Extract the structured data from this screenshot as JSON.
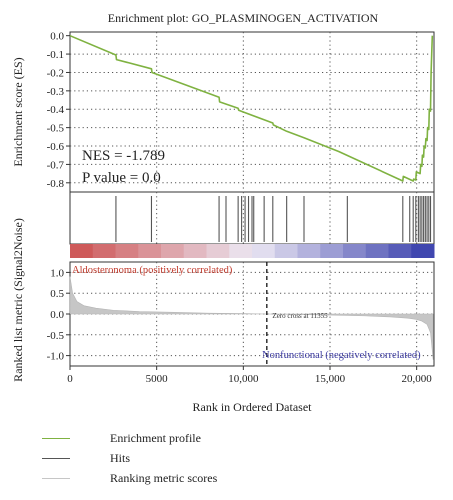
{
  "chart_data": {
    "type": "line",
    "title": "Enrichment plot: GO_PLASMINOGEN_ACTIVATION",
    "xlabel": "Rank in Ordered Dataset",
    "xlim": [
      0,
      21000
    ],
    "x_ticks": [
      0,
      5000,
      10000,
      15000,
      20000
    ],
    "x_tick_labels": [
      "0",
      "5000",
      "10,000",
      "15,000",
      "20,000"
    ],
    "grid": true,
    "enrichment": {
      "ylabel": "Enrichment score (ES)",
      "ylim": [
        -0.85,
        0.02
      ],
      "y_ticks": [
        0.0,
        -0.1,
        -0.2,
        -0.3,
        -0.4,
        -0.5,
        -0.6,
        -0.7,
        -0.8
      ],
      "y_tick_labels": [
        "0.0",
        "-0.1",
        "-0.2",
        "-0.3",
        "-0.4",
        "-0.5",
        "-0.6",
        "-0.7",
        "-0.8"
      ],
      "series": [
        {
          "name": "Enrichment profile",
          "color": "#7fb241",
          "x": [
            0,
            2650,
            2680,
            4700,
            4730,
            8600,
            8630,
            9700,
            9730,
            10000,
            11700,
            11730,
            12500,
            13500,
            15500,
            19200,
            19230,
            19800,
            19830,
            19950,
            19980,
            20200,
            20230,
            20300,
            20330,
            20400,
            20430,
            20500,
            20530,
            20600,
            20630,
            20700,
            20730,
            20800,
            20830,
            20900
          ],
          "y": [
            0.0,
            -0.105,
            -0.13,
            -0.18,
            -0.2,
            -0.335,
            -0.36,
            -0.395,
            -0.405,
            -0.415,
            -0.475,
            -0.485,
            -0.52,
            -0.555,
            -0.63,
            -0.79,
            -0.765,
            -0.79,
            -0.78,
            -0.785,
            -0.74,
            -0.75,
            -0.7,
            -0.71,
            -0.65,
            -0.66,
            -0.6,
            -0.61,
            -0.56,
            -0.57,
            -0.5,
            -0.51,
            -0.4,
            -0.41,
            -0.2,
            0.0
          ]
        }
      ],
      "annotations": [
        "NES = -1.789",
        "P value = 0.0"
      ]
    },
    "hits": {
      "name": "Hits",
      "color": "#555555",
      "positions": [
        2650,
        4700,
        8600,
        9000,
        9700,
        9900,
        10100,
        10300,
        10500,
        10600,
        11200,
        11700,
        12500,
        13500,
        16000,
        19200,
        19600,
        19800,
        19950,
        20100,
        20200,
        20300,
        20400,
        20500,
        20600,
        20700,
        20800
      ]
    },
    "ranking_metric": {
      "name": "Ranking metric scores",
      "color": "#c6c6c6",
      "ylabel": "Ranked list metric (Signal2Noise)",
      "ylim": [
        -1.25,
        1.25
      ],
      "y_ticks": [
        1.0,
        0.5,
        0.0,
        -0.5,
        -1.0
      ],
      "y_tick_labels": [
        "1.0",
        "0.5",
        "0.0",
        "-0.5",
        "-1.0"
      ],
      "x": [
        0,
        150,
        400,
        800,
        1500,
        2500,
        4000,
        6000,
        8000,
        10000,
        11355,
        13000,
        15000,
        17000,
        18500,
        19500,
        20000,
        20300,
        20600,
        20800,
        20950
      ],
      "y": [
        0.9,
        0.5,
        0.3,
        0.2,
        0.14,
        0.09,
        0.06,
        0.04,
        0.02,
        0.01,
        0.0,
        -0.01,
        -0.025,
        -0.045,
        -0.07,
        -0.1,
        -0.13,
        -0.17,
        -0.25,
        -0.45,
        -1.1
      ],
      "zero_cross": 11355,
      "zero_cross_label": "Zero cross at 11355",
      "positive_label": "Aldosteronoma (positively correlated)",
      "negative_label": "Nonfunctional (negatively correlated)",
      "positive_color": "#c0392b",
      "negative_color": "#3b3aa0"
    },
    "legend": [
      {
        "label": "Enrichment profile",
        "color": "#7fb241"
      },
      {
        "label": "Hits",
        "color": "#555555"
      },
      {
        "label": "Ranking metric scores",
        "color": "#c6c6c6"
      }
    ]
  }
}
